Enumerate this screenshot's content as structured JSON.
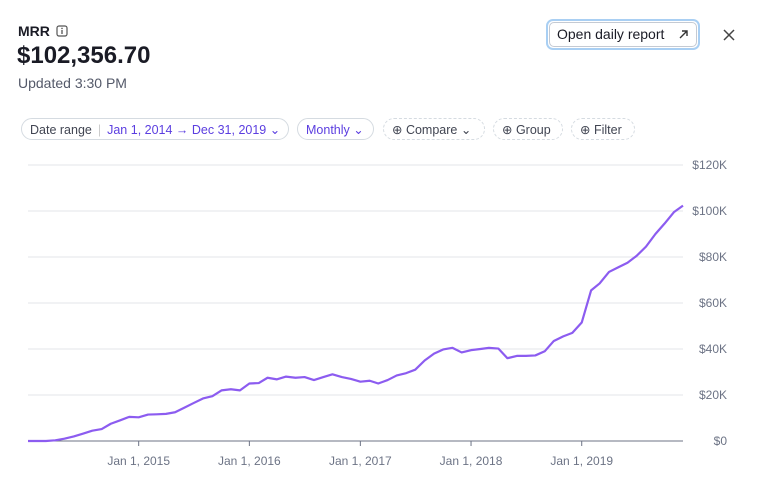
{
  "header": {
    "title": "MRR",
    "value": "$102,356.70",
    "updated": "Updated 3:30 PM",
    "button": "Open daily report"
  },
  "filters": {
    "date_label": "Date range",
    "date_value": "Jan 1, 2014 → Dec 31, 2019",
    "interval": "Monthly",
    "compare": "Compare",
    "group": "Group",
    "filter": "Filter"
  },
  "chart_data": {
    "type": "line",
    "color": "#8c5cf0",
    "x": [
      "2014-01-01",
      "2014-02-01",
      "2014-03-01",
      "2014-04-01",
      "2014-05-01",
      "2014-06-01",
      "2014-07-01",
      "2014-08-01",
      "2014-09-01",
      "2014-10-01",
      "2014-11-01",
      "2014-12-01",
      "2015-01-01",
      "2015-02-01",
      "2015-03-01",
      "2015-04-01",
      "2015-05-01",
      "2015-06-01",
      "2015-07-01",
      "2015-08-01",
      "2015-09-01",
      "2015-10-01",
      "2015-11-01",
      "2015-12-01",
      "2016-01-01",
      "2016-02-01",
      "2016-03-01",
      "2016-04-01",
      "2016-05-01",
      "2016-06-01",
      "2016-07-01",
      "2016-08-01",
      "2016-09-01",
      "2016-10-01",
      "2016-11-01",
      "2016-12-01",
      "2017-01-01",
      "2017-02-01",
      "2017-03-01",
      "2017-04-01",
      "2017-05-01",
      "2017-06-01",
      "2017-07-01",
      "2017-08-01",
      "2017-09-01",
      "2017-10-01",
      "2017-11-01",
      "2017-12-01",
      "2018-01-01",
      "2018-02-01",
      "2018-03-01",
      "2018-04-01",
      "2018-05-01",
      "2018-06-01",
      "2018-07-01",
      "2018-08-01",
      "2018-09-01",
      "2018-10-01",
      "2018-11-01",
      "2018-12-01",
      "2019-01-01",
      "2019-02-01",
      "2019-03-01",
      "2019-04-01",
      "2019-05-01",
      "2019-06-01",
      "2019-07-01",
      "2019-08-01",
      "2019-09-01",
      "2019-10-01",
      "2019-11-01",
      "2019-12-01"
    ],
    "values": [
      0,
      0,
      0,
      300,
      1000,
      2000,
      3200,
      4500,
      5200,
      7500,
      9000,
      10500,
      10300,
      11500,
      11600,
      11800,
      12500,
      14500,
      16500,
      18500,
      19500,
      22000,
      22500,
      22000,
      25000,
      25200,
      27500,
      26800,
      28000,
      27500,
      27800,
      26500,
      27800,
      29000,
      27800,
      27000,
      25800,
      26200,
      25000,
      26500,
      28500,
      29500,
      31000,
      35000,
      38000,
      39800,
      40500,
      38500,
      39500,
      40000,
      40500,
      40200,
      36000,
      37000,
      37000,
      37200,
      39000,
      43500,
      45500,
      47000,
      51500,
      65500,
      68500,
      73500,
      75500,
      77500,
      80500,
      84500,
      90000,
      94500,
      99500,
      102356.7
    ],
    "xlim": [
      "2014-01-01",
      "2019-12-01"
    ],
    "xticks": [
      {
        "value": "2015-01-01",
        "label": "Jan 1, 2015"
      },
      {
        "value": "2016-01-01",
        "label": "Jan 1, 2016"
      },
      {
        "value": "2017-01-01",
        "label": "Jan 1, 2017"
      },
      {
        "value": "2018-01-01",
        "label": "Jan 1, 2018"
      },
      {
        "value": "2019-01-01",
        "label": "Jan 1, 2019"
      }
    ],
    "ylim": [
      0,
      120000
    ],
    "yticks": [
      {
        "value": 0,
        "label": "$0"
      },
      {
        "value": 20000,
        "label": "$20K"
      },
      {
        "value": 40000,
        "label": "$40K"
      },
      {
        "value": 60000,
        "label": "$60K"
      },
      {
        "value": 80000,
        "label": "$80K"
      },
      {
        "value": 100000,
        "label": "$100K"
      },
      {
        "value": 120000,
        "label": "$120K"
      }
    ],
    "grid": true
  }
}
